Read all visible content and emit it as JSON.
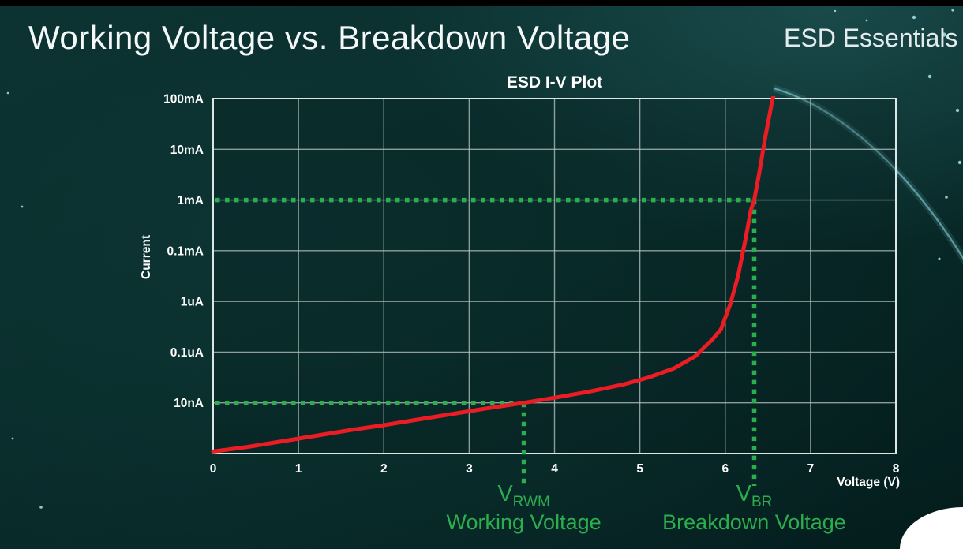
{
  "page": {
    "title": "Working Voltage vs. Breakdown Voltage",
    "watermark": "ESD Essentials"
  },
  "chart_data": {
    "type": "line",
    "title": "ESD I-V Plot",
    "xlabel": "Voltage (V)",
    "ylabel": "Current",
    "x_ticks": [
      "0",
      "1",
      "2",
      "3",
      "4",
      "5",
      "6",
      "7",
      "8"
    ],
    "y_ticks_top_to_bottom": [
      "100mA",
      "10mA",
      "1mA",
      "0.1mA",
      "1uA",
      "0.1uA",
      "10nA"
    ],
    "xlim": [
      0,
      8
    ],
    "y_scale": "log (evenly spaced labeled decade rows, bottom row unlabeled)",
    "grid": true,
    "series": [
      {
        "name": "ESD I-V curve",
        "color": "#EC1C24",
        "points_voltage_row": [
          [
            0,
            0.04
          ],
          [
            0.4,
            0.13
          ],
          [
            0.8,
            0.24
          ],
          [
            1.2,
            0.35
          ],
          [
            1.6,
            0.46
          ],
          [
            2.0,
            0.56
          ],
          [
            2.4,
            0.67
          ],
          [
            2.8,
            0.78
          ],
          [
            3.2,
            0.89
          ],
          [
            3.64,
            1.0
          ],
          [
            4.0,
            1.1
          ],
          [
            4.4,
            1.22
          ],
          [
            4.8,
            1.36
          ],
          [
            5.1,
            1.5
          ],
          [
            5.4,
            1.68
          ],
          [
            5.65,
            1.92
          ],
          [
            5.85,
            2.25
          ],
          [
            5.95,
            2.45
          ],
          [
            6.06,
            2.95
          ],
          [
            6.15,
            3.5
          ],
          [
            6.24,
            4.25
          ],
          [
            6.3,
            4.8
          ],
          [
            6.34,
            5.0
          ],
          [
            6.4,
            5.55
          ],
          [
            6.47,
            6.25
          ],
          [
            6.55,
            6.95
          ],
          [
            6.58,
            7.15
          ]
        ]
      }
    ],
    "annotations": [
      {
        "symbol": "V",
        "subscript": "RWM",
        "caption": "Working Voltage",
        "voltage": 3.64,
        "row": 1,
        "current": "10nA"
      },
      {
        "symbol": "V",
        "subscript": "BR",
        "caption": "Breakdown Voltage",
        "voltage": 6.34,
        "row": 5,
        "current": "1mA"
      }
    ],
    "colors": {
      "curve": "#EC1C24",
      "annotation_green": "#2CAD4E",
      "grid": "#BAC5C3",
      "border": "#DCE6E4",
      "text": "#FFFFFF"
    }
  }
}
